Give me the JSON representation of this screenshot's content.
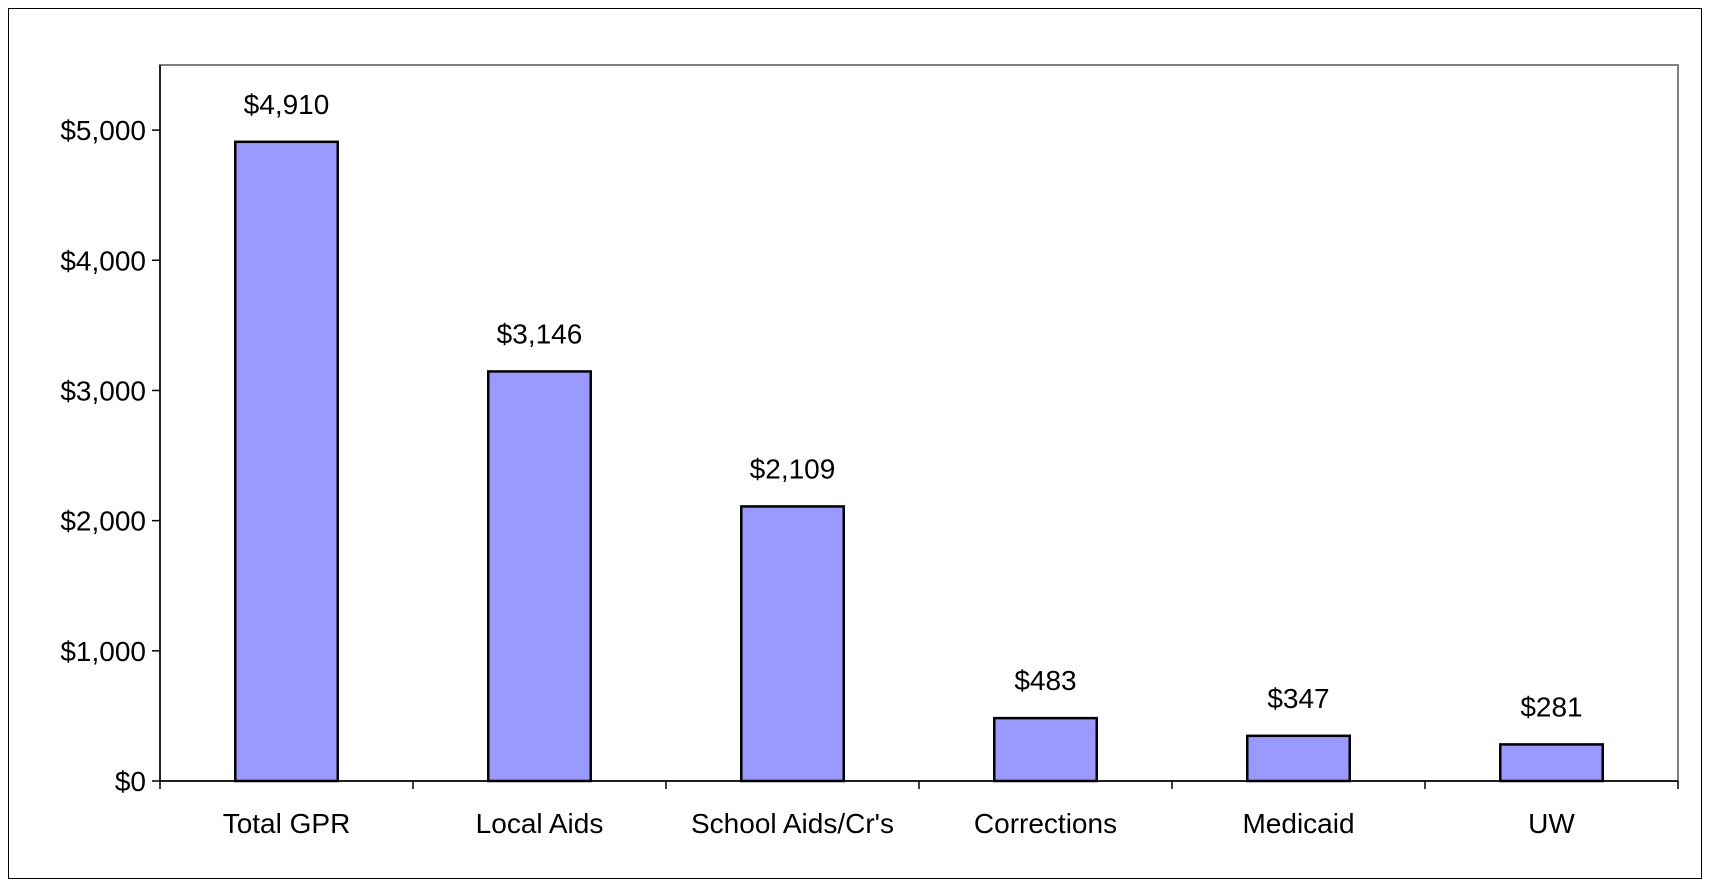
{
  "chart_data": {
    "type": "bar",
    "title": "",
    "xlabel": "",
    "ylabel": "",
    "categories": [
      "Total GPR",
      "Local Aids",
      "School Aids/Cr's",
      "Corrections",
      "Medicaid",
      "UW"
    ],
    "values": [
      4910,
      3146,
      2109,
      483,
      347,
      281
    ],
    "data_labels": [
      "$4,910",
      "$3,146",
      "$2,109",
      "$483",
      "$347",
      "$281"
    ],
    "ylim": [
      0,
      5500
    ],
    "y_ticks": [
      0,
      1000,
      2000,
      3000,
      4000,
      5000
    ],
    "y_tick_labels": [
      "$0",
      "$1,000",
      "$2,000",
      "$3,000",
      "$4,000",
      "$5,000"
    ],
    "grid": false,
    "legend": "none",
    "colors": {
      "bar_fill": "#9999ff",
      "bar_stroke": "#000000",
      "plot_border": "#808080",
      "axis": "#000000"
    }
  }
}
